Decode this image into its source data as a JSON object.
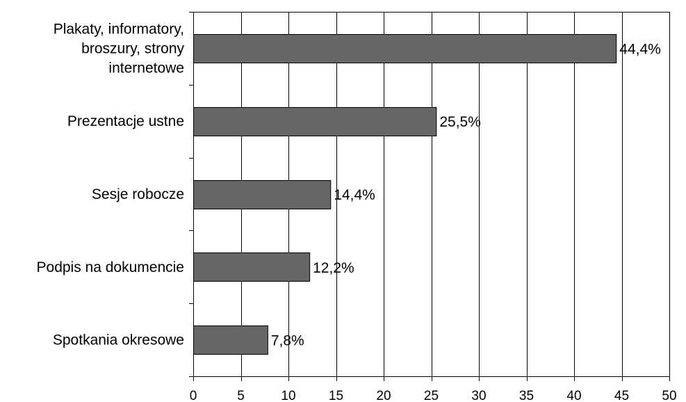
{
  "chart_data": {
    "type": "bar",
    "orientation": "horizontal",
    "categories": [
      [
        "Plakaty, informatory,",
        "broszury, strony",
        "internetowe"
      ],
      [
        "Prezentacje ustne"
      ],
      [
        "Sesje robocze"
      ],
      [
        "Podpis na dokumencie"
      ],
      [
        "Spotkania okresowe"
      ]
    ],
    "values": [
      44.4,
      25.5,
      14.4,
      12.2,
      7.8
    ],
    "data_labels": [
      "44,4%",
      "25,5%",
      "14,4%",
      "12,2%",
      "7,8%"
    ],
    "xlim": [
      0,
      50
    ],
    "xticks": [
      "0",
      "5",
      "10",
      "15",
      "20",
      "25",
      "30",
      "35",
      "40",
      "45",
      "50"
    ],
    "grid": "vertical",
    "legend": "none",
    "colors": {
      "bar": "#666666",
      "bar_stroke": "#000000",
      "grid": "#000000",
      "background": "#ffffff"
    }
  }
}
